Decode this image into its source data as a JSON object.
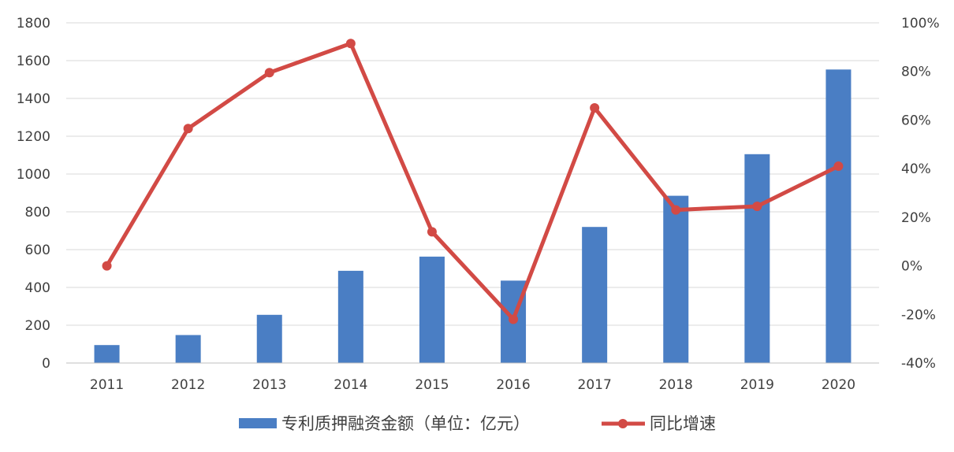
{
  "chart_data": {
    "type": "bar",
    "categories": [
      "2011",
      "2012",
      "2013",
      "2014",
      "2015",
      "2016",
      "2017",
      "2018",
      "2019",
      "2020"
    ],
    "series": [
      {
        "name": "专利质押融资金额（单位：亿元）",
        "type": "bar",
        "axis": "left",
        "color": "#4a7ec4",
        "values": [
          95,
          148,
          255,
          488,
          563,
          436,
          720,
          885,
          1105,
          1553
        ]
      },
      {
        "name": "同比增速",
        "type": "line",
        "axis": "right",
        "color": "#d24a45",
        "values": [
          0,
          0.565,
          0.795,
          0.915,
          0.14,
          -0.22,
          0.65,
          0.23,
          0.245,
          0.41
        ]
      }
    ],
    "y_left": {
      "min": 0,
      "max": 1800,
      "step": 200,
      "ticks": [
        "0",
        "200",
        "400",
        "600",
        "800",
        "1000",
        "1200",
        "1400",
        "1600",
        "1800"
      ]
    },
    "y_right": {
      "min": -0.4,
      "max": 1.0,
      "step": 0.2,
      "ticks": [
        "-40%",
        "-20%",
        "0%",
        "20%",
        "40%",
        "60%",
        "80%",
        "100%"
      ]
    },
    "grid": true,
    "legend_position": "bottom"
  }
}
